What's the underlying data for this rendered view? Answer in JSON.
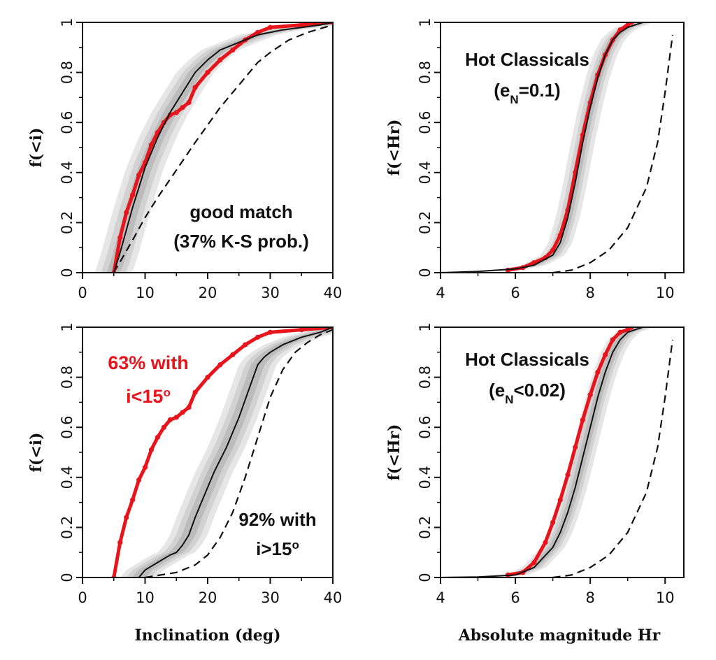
{
  "colors": {
    "observed": "#e8141c",
    "model": "#111111",
    "band_outer": "#e6e6e6",
    "band_mid": "#d2d2d2",
    "band_inner": "#bcbcbc"
  },
  "xlabels": {
    "left": "Inclination (deg)",
    "right": "Absolute magnitude Hr"
  },
  "chart_data": [
    {
      "type": "line",
      "panel": "top-left",
      "ylabel": "f(<i)",
      "xlim": [
        0,
        40
      ],
      "ylim": [
        0,
        1
      ],
      "xticks": [
        0,
        10,
        20,
        30,
        40
      ],
      "yticks": [
        0,
        0.2,
        0.4,
        0.6,
        0.8,
        1
      ],
      "annotation": {
        "lines": [
          "good match",
          "(37% K-S prob.)"
        ],
        "color": "black"
      },
      "series": [
        {
          "role": "observed",
          "style": "red-dots",
          "x": [
            5,
            6,
            7,
            8,
            9,
            10,
            11,
            12,
            13,
            14,
            15,
            16,
            17,
            18,
            20,
            22,
            24,
            26,
            28,
            30,
            35,
            40
          ],
          "y": [
            0,
            0.14,
            0.24,
            0.31,
            0.39,
            0.44,
            0.51,
            0.56,
            0.6,
            0.63,
            0.64,
            0.66,
            0.68,
            0.74,
            0.8,
            0.85,
            0.89,
            0.93,
            0.96,
            0.98,
            0.99,
            1
          ]
        },
        {
          "role": "model",
          "style": "solid",
          "x": [
            5,
            6,
            7,
            8,
            9,
            10,
            12,
            14,
            16,
            18,
            20,
            22,
            25,
            28,
            30,
            32,
            35,
            38,
            40
          ],
          "y": [
            0,
            0.08,
            0.17,
            0.26,
            0.34,
            0.42,
            0.54,
            0.64,
            0.72,
            0.8,
            0.85,
            0.89,
            0.92,
            0.95,
            0.96,
            0.97,
            0.98,
            0.99,
            1
          ]
        },
        {
          "role": "reference",
          "style": "dashed",
          "x": [
            5,
            8,
            10,
            12,
            15,
            18,
            20,
            22,
            25,
            28,
            30,
            33,
            36,
            40
          ],
          "y": [
            0,
            0.13,
            0.22,
            0.3,
            0.41,
            0.52,
            0.59,
            0.66,
            0.75,
            0.84,
            0.88,
            0.93,
            0.96,
            0.99
          ]
        }
      ]
    },
    {
      "type": "line",
      "panel": "top-right",
      "ylabel": "f(<Hr)",
      "xlim": [
        4,
        10.5
      ],
      "ylim": [
        0,
        1
      ],
      "xticks": [
        4,
        6,
        8,
        10
      ],
      "yticks": [
        0,
        0.2,
        0.4,
        0.6,
        0.8,
        1
      ],
      "annotation": {
        "lines": [
          "Hot Classicals",
          "(e_N=0.1)"
        ],
        "color": "black"
      },
      "series": [
        {
          "role": "observed",
          "style": "red-dots",
          "x": [
            5.8,
            6.2,
            6.5,
            6.8,
            7.0,
            7.2,
            7.4,
            7.6,
            7.8,
            8.0,
            8.2,
            8.4,
            8.6,
            8.8,
            9.0,
            9.1
          ],
          "y": [
            0.01,
            0.02,
            0.04,
            0.06,
            0.09,
            0.15,
            0.25,
            0.4,
            0.55,
            0.68,
            0.79,
            0.87,
            0.93,
            0.97,
            0.99,
            1
          ]
        },
        {
          "role": "model",
          "style": "solid",
          "x": [
            4.0,
            5.0,
            6.0,
            6.5,
            7.0,
            7.2,
            7.4,
            7.6,
            7.8,
            8.0,
            8.2,
            8.4,
            8.6,
            8.8,
            9.0,
            9.2,
            9.4,
            9.6
          ],
          "y": [
            0,
            0.005,
            0.015,
            0.03,
            0.07,
            0.12,
            0.22,
            0.36,
            0.52,
            0.66,
            0.78,
            0.87,
            0.93,
            0.96,
            0.98,
            0.99,
            1,
            1
          ]
        },
        {
          "role": "reference",
          "style": "dashed",
          "x": [
            7.0,
            7.5,
            8.0,
            8.5,
            9.0,
            9.5,
            9.8,
            10.0,
            10.2
          ],
          "y": [
            0,
            0.01,
            0.04,
            0.09,
            0.18,
            0.34,
            0.52,
            0.72,
            0.95
          ]
        }
      ]
    },
    {
      "type": "line",
      "panel": "bottom-left",
      "ylabel": "f(<i)",
      "xlim": [
        0,
        40
      ],
      "ylim": [
        0,
        1
      ],
      "xticks": [
        0,
        10,
        20,
        30,
        40
      ],
      "yticks": [
        0,
        0.2,
        0.4,
        0.6,
        0.8,
        1
      ],
      "annotations": [
        {
          "lines": [
            "63% with",
            "i<15o"
          ],
          "color": "red"
        },
        {
          "lines": [
            "92% with",
            "i>15o"
          ],
          "color": "black"
        }
      ],
      "series": [
        {
          "role": "observed",
          "style": "red-dots",
          "x": [
            5,
            6,
            7,
            8,
            9,
            10,
            11,
            12,
            13,
            14,
            15,
            16,
            17,
            18,
            20,
            22,
            24,
            26,
            28,
            30,
            35,
            40
          ],
          "y": [
            0,
            0.14,
            0.24,
            0.31,
            0.39,
            0.44,
            0.51,
            0.56,
            0.6,
            0.63,
            0.64,
            0.66,
            0.68,
            0.74,
            0.8,
            0.85,
            0.89,
            0.93,
            0.96,
            0.98,
            0.99,
            1
          ]
        },
        {
          "role": "model",
          "style": "solid",
          "x": [
            9,
            10,
            12,
            14,
            15,
            16,
            17,
            18,
            19,
            20,
            21,
            22,
            23,
            24,
            25,
            26,
            27,
            28,
            29,
            30,
            32,
            35,
            38,
            40
          ],
          "y": [
            0,
            0.03,
            0.06,
            0.09,
            0.1,
            0.13,
            0.17,
            0.24,
            0.3,
            0.36,
            0.42,
            0.47,
            0.52,
            0.58,
            0.64,
            0.71,
            0.78,
            0.85,
            0.88,
            0.9,
            0.93,
            0.96,
            0.98,
            1
          ]
        },
        {
          "role": "reference",
          "style": "dashed",
          "x": [
            10,
            15,
            18,
            20,
            22,
            24,
            26,
            28,
            30,
            32,
            34,
            36,
            38,
            40
          ],
          "y": [
            0,
            0.02,
            0.05,
            0.09,
            0.16,
            0.26,
            0.4,
            0.56,
            0.72,
            0.83,
            0.9,
            0.94,
            0.97,
            0.99
          ]
        }
      ]
    },
    {
      "type": "line",
      "panel": "bottom-right",
      "ylabel": "f(<Hr)",
      "xlim": [
        4,
        10.5
      ],
      "ylim": [
        0,
        1
      ],
      "xticks": [
        4,
        6,
        8,
        10
      ],
      "yticks": [
        0,
        0.2,
        0.4,
        0.6,
        0.8,
        1
      ],
      "annotation": {
        "lines": [
          "Hot Classicals",
          "(e_N<0.02)"
        ],
        "color": "black"
      },
      "series": [
        {
          "role": "observed",
          "style": "red-dots",
          "x": [
            5.8,
            6.2,
            6.5,
            6.8,
            7.0,
            7.2,
            7.4,
            7.6,
            7.8,
            8.0,
            8.2,
            8.4,
            8.6,
            8.8,
            9.0,
            9.1
          ],
          "y": [
            0.01,
            0.02,
            0.06,
            0.14,
            0.22,
            0.31,
            0.41,
            0.52,
            0.63,
            0.73,
            0.82,
            0.89,
            0.95,
            0.98,
            0.99,
            1
          ]
        },
        {
          "role": "model",
          "style": "solid",
          "x": [
            4.0,
            5.0,
            6.0,
            6.5,
            7.0,
            7.2,
            7.4,
            7.6,
            7.8,
            8.0,
            8.2,
            8.4,
            8.6,
            8.8,
            9.0,
            9.2,
            9.4
          ],
          "y": [
            0,
            0.002,
            0.01,
            0.04,
            0.12,
            0.18,
            0.26,
            0.36,
            0.48,
            0.6,
            0.72,
            0.82,
            0.9,
            0.95,
            0.98,
            0.99,
            1
          ]
        },
        {
          "role": "reference",
          "style": "dashed",
          "x": [
            7.0,
            7.5,
            8.0,
            8.5,
            9.0,
            9.5,
            9.8,
            10.0,
            10.2
          ],
          "y": [
            0,
            0.01,
            0.04,
            0.09,
            0.18,
            0.34,
            0.52,
            0.72,
            0.95
          ]
        }
      ]
    }
  ]
}
